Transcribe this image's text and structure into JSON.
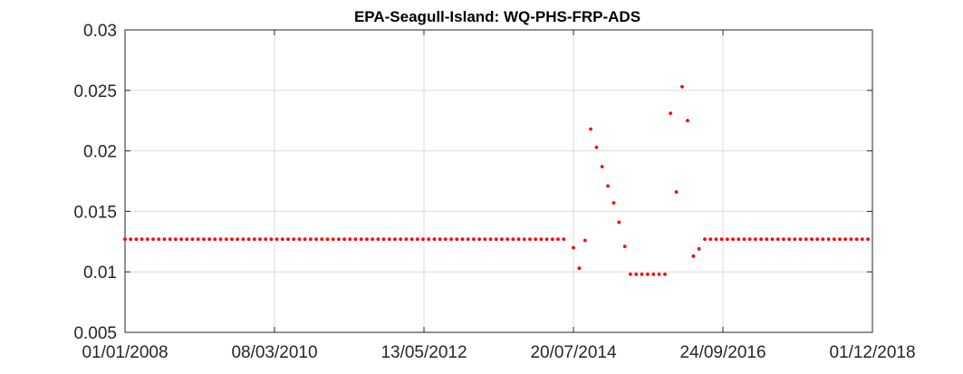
{
  "chart_data": {
    "type": "scatter",
    "title": "EPA-Seagull-Island: WQ-PHS-FRP-ADS",
    "xlabel": "",
    "ylabel": "",
    "xlim": [
      "2008-01-01",
      "2018-12-01"
    ],
    "ylim": [
      0.005,
      0.03
    ],
    "x_ticks": [
      "01/01/2008",
      "08/03/2010",
      "13/05/2012",
      "20/07/2014",
      "24/09/2016",
      "01/12/2018"
    ],
    "y_ticks": [
      "0.005",
      "0.01",
      "0.015",
      "0.02",
      "0.025",
      "0.03"
    ],
    "grid": true,
    "marker_color": "#ff0000",
    "segments": [
      {
        "note": "constant level",
        "from": "2008-01-01",
        "to": "2014-06-20",
        "step_days": 30,
        "value": 0.0127
      }
    ],
    "points": [
      {
        "x": "2014-07-20",
        "y": 0.012
      },
      {
        "x": "2014-08-20",
        "y": 0.0103
      },
      {
        "x": "2014-09-20",
        "y": 0.0126
      },
      {
        "x": "2014-10-20",
        "y": 0.0218
      },
      {
        "x": "2014-11-20",
        "y": 0.0203
      },
      {
        "x": "2014-12-20",
        "y": 0.0187
      },
      {
        "x": "2015-01-20",
        "y": 0.0171
      },
      {
        "x": "2015-02-20",
        "y": 0.0157
      },
      {
        "x": "2015-03-20",
        "y": 0.0141
      },
      {
        "x": "2015-04-20",
        "y": 0.0121
      },
      {
        "x": "2015-05-20",
        "y": 0.0098
      },
      {
        "x": "2015-06-20",
        "y": 0.0098
      },
      {
        "x": "2015-07-20",
        "y": 0.0098
      },
      {
        "x": "2015-08-20",
        "y": 0.0098
      },
      {
        "x": "2015-09-20",
        "y": 0.0098
      },
      {
        "x": "2015-10-20",
        "y": 0.0098
      },
      {
        "x": "2015-11-20",
        "y": 0.0098
      },
      {
        "x": "2015-12-20",
        "y": 0.0231
      },
      {
        "x": "2016-01-20",
        "y": 0.0166
      },
      {
        "x": "2016-02-20",
        "y": 0.0253
      },
      {
        "x": "2016-03-20",
        "y": 0.0225
      },
      {
        "x": "2016-04-20",
        "y": 0.0113
      },
      {
        "x": "2016-05-20",
        "y": 0.0119
      }
    ],
    "segments_after": [
      {
        "from": "2016-06-20",
        "to": "2018-12-01",
        "step_days": 30,
        "value": 0.0127
      }
    ]
  }
}
